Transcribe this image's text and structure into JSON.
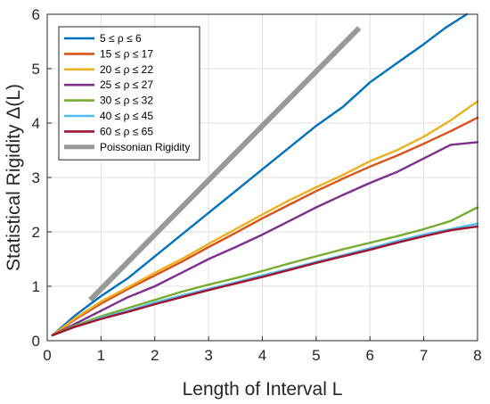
{
  "chart_data": {
    "type": "line",
    "xlabel": "Length of Interval L",
    "ylabel": "Statistical Rigidity Δ(L)",
    "xlim": [
      0,
      8
    ],
    "ylim": [
      0,
      6
    ],
    "xticks": [
      "0",
      "1",
      "2",
      "3",
      "4",
      "5",
      "6",
      "7",
      "8"
    ],
    "yticks": [
      "0",
      "1",
      "2",
      "3",
      "4",
      "5",
      "6"
    ],
    "grid": true,
    "legend_position": "top-left",
    "series": [
      {
        "name": "5 ≤ ρ ≤ 6",
        "color": "#0072BD",
        "x": [
          0.1,
          0.5,
          1,
          1.5,
          2,
          2.5,
          3,
          3.5,
          4,
          4.5,
          5,
          5.5,
          6,
          6.5,
          7,
          7.4,
          7.8
        ],
        "y": [
          0.1,
          0.45,
          0.82,
          1.15,
          1.55,
          1.95,
          2.35,
          2.75,
          3.15,
          3.55,
          3.95,
          4.3,
          4.75,
          5.1,
          5.45,
          5.75,
          6.0
        ]
      },
      {
        "name": "15 ≤ ρ ≤ 17",
        "color": "#D95319",
        "x": [
          0.1,
          0.5,
          1,
          1.5,
          2,
          2.5,
          3,
          3.5,
          4,
          4.5,
          5,
          5.5,
          6,
          6.5,
          7,
          7.5,
          8
        ],
        "y": [
          0.1,
          0.38,
          0.68,
          0.95,
          1.2,
          1.45,
          1.72,
          1.98,
          2.25,
          2.5,
          2.75,
          2.98,
          3.2,
          3.4,
          3.62,
          3.85,
          4.1
        ]
      },
      {
        "name": "20 ≤ ρ ≤ 22",
        "color": "#EDB120",
        "x": [
          0.1,
          0.5,
          1,
          1.5,
          2,
          2.5,
          3,
          3.5,
          4,
          4.5,
          5,
          5.5,
          6,
          6.5,
          7,
          7.5,
          8
        ],
        "y": [
          0.1,
          0.4,
          0.72,
          0.98,
          1.25,
          1.5,
          1.78,
          2.05,
          2.32,
          2.58,
          2.82,
          3.05,
          3.3,
          3.5,
          3.75,
          4.05,
          4.4
        ]
      },
      {
        "name": "25 ≤ ρ ≤ 27",
        "color": "#7E2F8E",
        "x": [
          0.1,
          0.5,
          1,
          1.5,
          2,
          2.5,
          3,
          3.5,
          4,
          4.5,
          5,
          5.5,
          6,
          6.5,
          7,
          7.5,
          8
        ],
        "y": [
          0.1,
          0.3,
          0.55,
          0.8,
          1.0,
          1.25,
          1.5,
          1.72,
          1.95,
          2.2,
          2.45,
          2.68,
          2.9,
          3.1,
          3.35,
          3.6,
          3.65
        ]
      },
      {
        "name": "30 ≤ ρ ≤ 32",
        "color": "#77AC30",
        "x": [
          0.1,
          0.5,
          1,
          1.5,
          2,
          2.5,
          3,
          3.5,
          4,
          4.5,
          5,
          5.5,
          6,
          6.5,
          7,
          7.5,
          8
        ],
        "y": [
          0.1,
          0.27,
          0.45,
          0.6,
          0.75,
          0.9,
          1.03,
          1.15,
          1.28,
          1.42,
          1.55,
          1.68,
          1.8,
          1.92,
          2.05,
          2.2,
          2.45
        ]
      },
      {
        "name": "40 ≤ ρ ≤ 45",
        "color": "#4DBEEE",
        "x": [
          0.1,
          0.5,
          1,
          1.5,
          2,
          2.5,
          3,
          3.5,
          4,
          4.5,
          5,
          5.5,
          6,
          6.5,
          7,
          7.5,
          8
        ],
        "y": [
          0.1,
          0.25,
          0.42,
          0.55,
          0.7,
          0.83,
          0.95,
          1.07,
          1.2,
          1.32,
          1.45,
          1.57,
          1.7,
          1.83,
          1.95,
          2.05,
          2.15
        ]
      },
      {
        "name": "60 ≤ ρ ≤ 65",
        "color": "#A2142F",
        "x": [
          0.1,
          0.5,
          1,
          1.5,
          2,
          2.5,
          3,
          3.5,
          4,
          4.5,
          5,
          5.5,
          6,
          6.5,
          7,
          7.5,
          8
        ],
        "y": [
          0.1,
          0.25,
          0.4,
          0.53,
          0.67,
          0.8,
          0.93,
          1.05,
          1.17,
          1.3,
          1.43,
          1.55,
          1.67,
          1.8,
          1.92,
          2.03,
          2.1
        ]
      },
      {
        "name": "Poissonian Rigidity",
        "color": "#999999",
        "x": [
          0.8,
          5.8
        ],
        "y": [
          0.75,
          5.75
        ]
      }
    ]
  }
}
